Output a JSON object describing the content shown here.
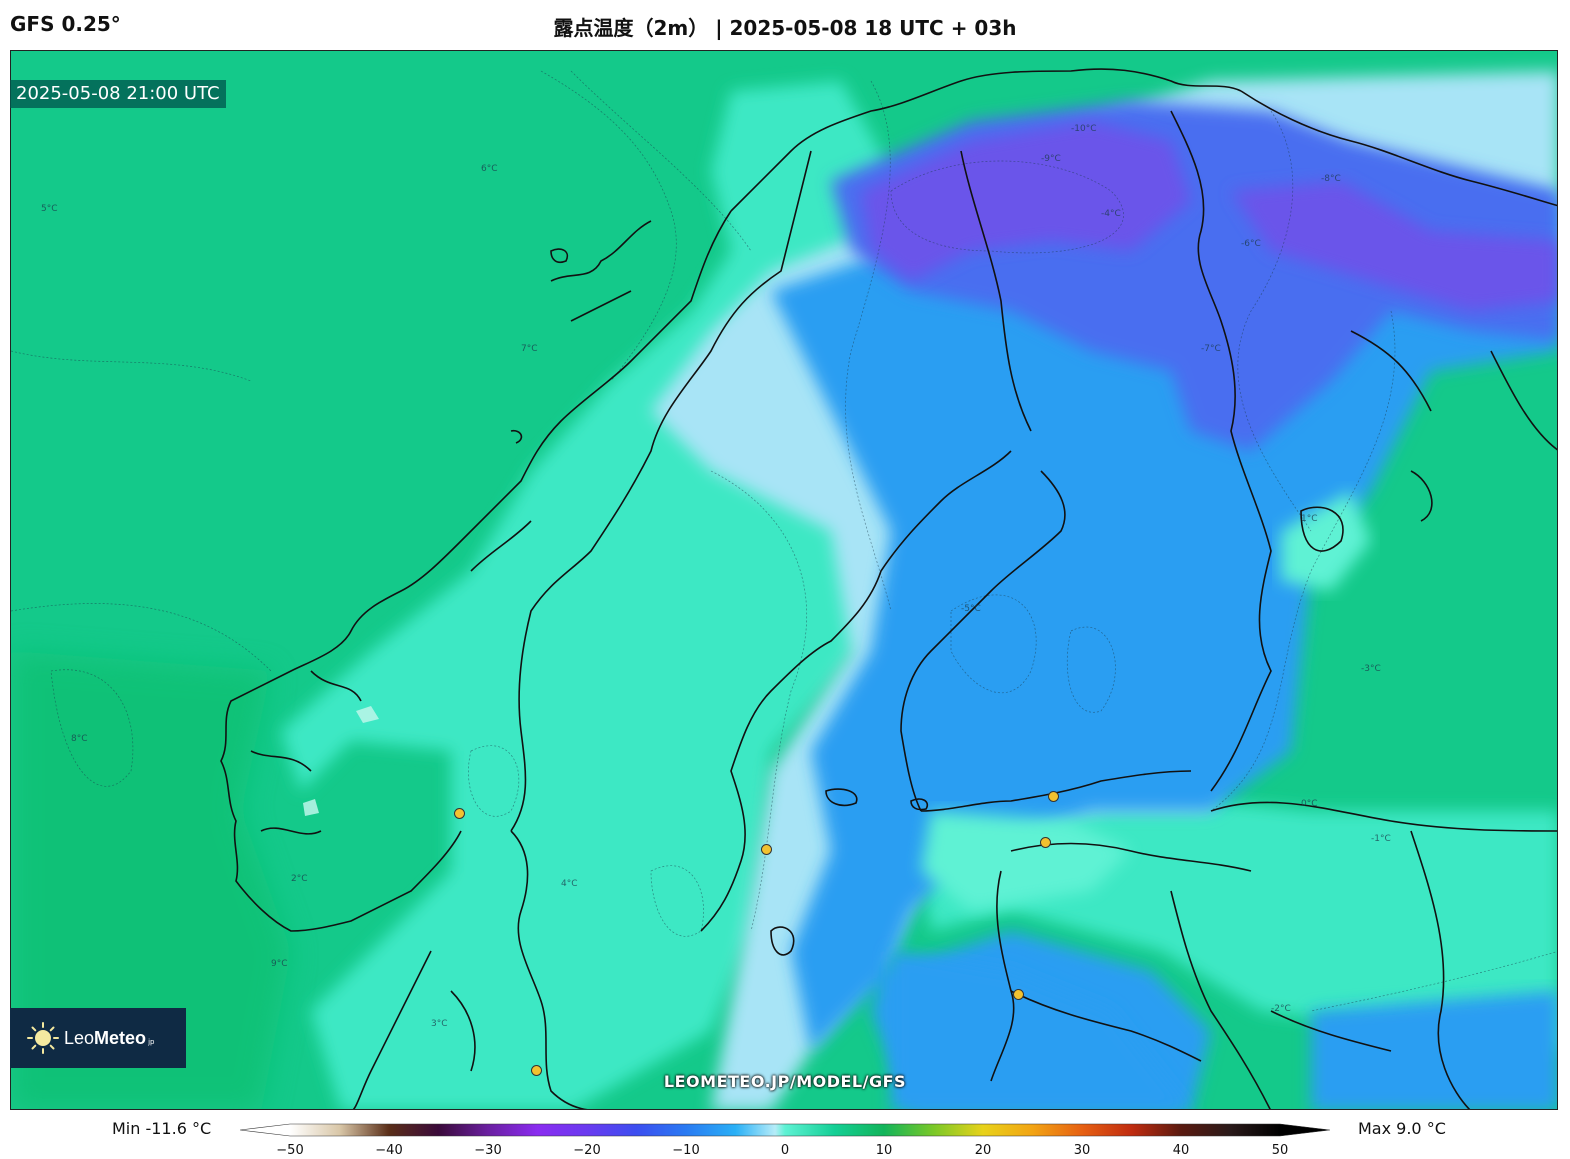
{
  "header": {
    "model": "GFS 0.25°",
    "title": "露点温度（2m） | 2025-05-08 18 UTC + 03h"
  },
  "map": {
    "valid_time": "2025-05-08 21:00 UTC",
    "watermark": "LEOMETEO.JP/MODEL/GFS",
    "logo": {
      "brand_light": "Leo",
      "brand_bold": "Meteo",
      "suffix": "jp"
    },
    "contour_labels": [
      "-10°C",
      "-9°C",
      "-8°C",
      "-7°C",
      "-6°C",
      "-5°C",
      "-4°C",
      "-3°C",
      "-2°C",
      "-1°C",
      "0°C",
      "1°C",
      "2°C",
      "3°C",
      "4°C",
      "5°C",
      "6°C",
      "7°C",
      "8°C",
      "9°C"
    ],
    "colors": {
      "sea_green": "#14c98a",
      "land_teal": "#3de8c4",
      "light_blue": "#a8e4f6",
      "blue": "#2b9ef2",
      "deep_blue": "#4a6ef0",
      "violet": "#6a54ea"
    }
  },
  "legend": {
    "min_label": "Min -11.6 °C",
    "max_label": "Max 9.0 °C",
    "ticks": [
      "−50",
      "−40",
      "−30",
      "−20",
      "−10",
      "0",
      "10",
      "20",
      "30",
      "40",
      "50"
    ],
    "tick_values": [
      -50,
      -40,
      -30,
      -20,
      -10,
      0,
      10,
      20,
      30,
      40,
      50
    ],
    "range": [
      -50,
      50
    ],
    "stops": [
      {
        "v": -50,
        "c": "#ffffff"
      },
      {
        "v": -45,
        "c": "#d9c7a8"
      },
      {
        "v": -40,
        "c": "#5a2e18"
      },
      {
        "v": -35,
        "c": "#3a0a3a"
      },
      {
        "v": -30,
        "c": "#6a1fa0"
      },
      {
        "v": -25,
        "c": "#8a2cf0"
      },
      {
        "v": -20,
        "c": "#6a3af0"
      },
      {
        "v": -15,
        "c": "#3c4ef0"
      },
      {
        "v": -10,
        "c": "#2a7af2"
      },
      {
        "v": -5,
        "c": "#2ab0f6"
      },
      {
        "v": -1,
        "c": "#b6ecf8"
      },
      {
        "v": 0,
        "c": "#5ef2d4"
      },
      {
        "v": 5,
        "c": "#14cf95"
      },
      {
        "v": 10,
        "c": "#12b45a"
      },
      {
        "v": 15,
        "c": "#7ac828"
      },
      {
        "v": 20,
        "c": "#e8d21a"
      },
      {
        "v": 25,
        "c": "#f2a414"
      },
      {
        "v": 30,
        "c": "#e66012"
      },
      {
        "v": 35,
        "c": "#c02c10"
      },
      {
        "v": 40,
        "c": "#5a1a10"
      },
      {
        "v": 45,
        "c": "#2a1a1a"
      },
      {
        "v": 50,
        "c": "#000000"
      }
    ]
  }
}
